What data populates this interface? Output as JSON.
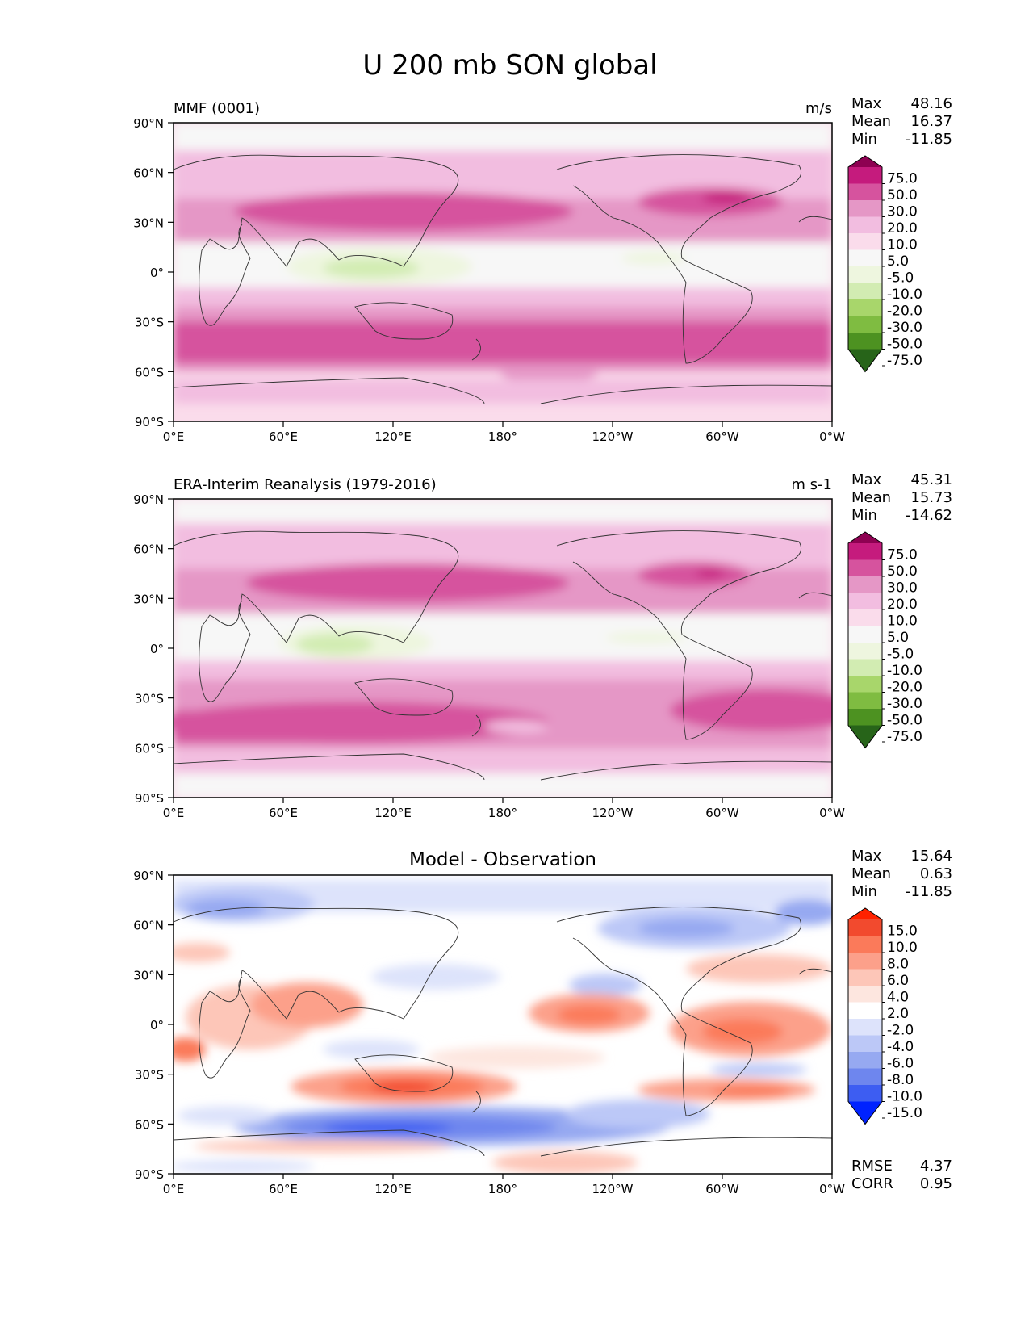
{
  "title": "U 200 mb SON global",
  "axis_labels": {
    "lat": [
      "90°N",
      "60°N",
      "30°N",
      "0°",
      "30°S",
      "60°S",
      "90°S"
    ],
    "lon": [
      "0°E",
      "60°E",
      "120°E",
      "180°",
      "120°W",
      "60°W",
      "0°W"
    ]
  },
  "panels": [
    {
      "id": "test",
      "left_title": "MMF (0001)",
      "center_title": "",
      "units": "m/s",
      "stats": [
        {
          "label": "Max",
          "value": "48.16"
        },
        {
          "label": "Mean",
          "value": "16.37"
        },
        {
          "label": "Min",
          "value": "-11.85"
        }
      ],
      "extra_stats": [],
      "colorbar": {
        "ticks": [
          "75.0",
          "50.0",
          "30.0",
          "20.0",
          "10.0",
          "5.0",
          "-5.0",
          "-10.0",
          "-20.0",
          "-30.0",
          "-50.0",
          "-75.0"
        ],
        "colors": [
          "#8e0152",
          "#c51b7d",
          "#d6539e",
          "#e597c6",
          "#f2bde0",
          "#fadceb",
          "#f7f7f7",
          "#eef6df",
          "#d2ecb2",
          "#a8d66b",
          "#7fbc41",
          "#4d9221",
          "#276419"
        ]
      }
    },
    {
      "id": "reference",
      "left_title": "ERA-Interim Reanalysis (1979-2016)",
      "center_title": "",
      "units": "m s-1",
      "stats": [
        {
          "label": "Max",
          "value": "45.31"
        },
        {
          "label": "Mean",
          "value": "15.73"
        },
        {
          "label": "Min",
          "value": "-14.62"
        }
      ],
      "extra_stats": [],
      "colorbar": {
        "ticks": [
          "75.0",
          "50.0",
          "30.0",
          "20.0",
          "10.0",
          "5.0",
          "-5.0",
          "-10.0",
          "-20.0",
          "-30.0",
          "-50.0",
          "-75.0"
        ],
        "colors": [
          "#8e0152",
          "#c51b7d",
          "#d6539e",
          "#e597c6",
          "#f2bde0",
          "#fadceb",
          "#f7f7f7",
          "#eef6df",
          "#d2ecb2",
          "#a8d66b",
          "#7fbc41",
          "#4d9221",
          "#276419"
        ]
      }
    },
    {
      "id": "diff",
      "left_title": "",
      "center_title": "Model - Observation",
      "units": "",
      "stats": [
        {
          "label": "Max",
          "value": "15.64"
        },
        {
          "label": "Mean",
          "value": "0.63"
        },
        {
          "label": "Min",
          "value": "-11.85"
        }
      ],
      "extra_stats": [
        {
          "label": "RMSE",
          "value": "4.37"
        },
        {
          "label": "CORR",
          "value": "0.95"
        }
      ],
      "colorbar": {
        "ticks": [
          "15.0",
          "10.0",
          "8.0",
          "6.0",
          "4.0",
          "2.0",
          "-2.0",
          "-4.0",
          "-6.0",
          "-8.0",
          "-10.0",
          "-15.0"
        ],
        "colors": [
          "#ff2200",
          "#f24a2e",
          "#fb7a5a",
          "#fca08a",
          "#fdc6b8",
          "#fde6df",
          "#ffffff",
          "#dde3fb",
          "#bcc8f7",
          "#96a9f1",
          "#6e86ee",
          "#3d5df2",
          "#0022ff"
        ]
      }
    }
  ]
}
